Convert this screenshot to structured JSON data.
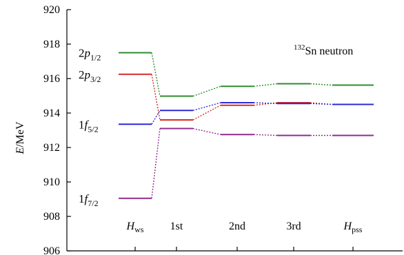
{
  "chart_data": {
    "type": "line",
    "ylabel": "E/MeV",
    "ylim": [
      906,
      920
    ],
    "yticks": [
      906,
      908,
      910,
      912,
      914,
      916,
      918,
      920
    ],
    "categories": [
      {
        "main": "H",
        "sub": "ws"
      },
      {
        "main": "1st",
        "sub": ""
      },
      {
        "main": "2nd",
        "sub": ""
      },
      {
        "main": "3rd",
        "sub": ""
      },
      {
        "main": "H",
        "sub": "pss"
      }
    ],
    "annotation": {
      "sup": "132",
      "text": "Sn neutron"
    },
    "series": [
      {
        "label": {
          "prefix": "2",
          "letter": "p",
          "sub": "1/2"
        },
        "color": "#2e8b2e",
        "values": [
          917.5,
          914.98,
          915.55,
          915.7,
          915.62
        ]
      },
      {
        "label": {
          "prefix": "2",
          "letter": "p",
          "sub": "3/2"
        },
        "color": "#d62a2a",
        "values": [
          916.25,
          913.6,
          914.45,
          914.6,
          914.5
        ]
      },
      {
        "label": {
          "prefix": "1",
          "letter": "f",
          "sub": "5/2"
        },
        "color": "#2a2ad6",
        "values": [
          913.35,
          914.15,
          914.6,
          914.55,
          914.5
        ]
      },
      {
        "label": {
          "prefix": "1",
          "letter": "f",
          "sub": "7/2"
        },
        "color": "#8e2a8e",
        "values": [
          909.05,
          913.1,
          912.75,
          912.7,
          912.7
        ]
      }
    ]
  }
}
